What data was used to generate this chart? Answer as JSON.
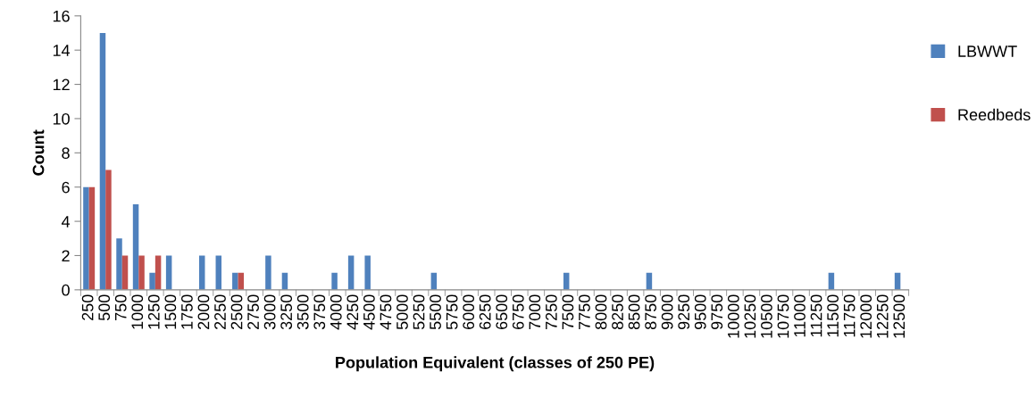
{
  "chart_data": {
    "type": "bar",
    "xlabel": "Population Equivalent (classes of 250 PE)",
    "ylabel": "Count",
    "categories": [
      "250",
      "500",
      "750",
      "1000",
      "1250",
      "1500",
      "1750",
      "2000",
      "2250",
      "2500",
      "2750",
      "3000",
      "3250",
      "3500",
      "3750",
      "4000",
      "4250",
      "4500",
      "4750",
      "5000",
      "5250",
      "5500",
      "5750",
      "6000",
      "6250",
      "6500",
      "6750",
      "7000",
      "7250",
      "7500",
      "7750",
      "8000",
      "8250",
      "8500",
      "8750",
      "9000",
      "9250",
      "9500",
      "9750",
      "10000",
      "10250",
      "10500",
      "10750",
      "11000",
      "11250",
      "11500",
      "11750",
      "12000",
      "12250",
      "12500"
    ],
    "series": [
      {
        "name": "LBWWT",
        "color": "#4f81bd",
        "values": [
          6,
          15,
          3,
          5,
          1,
          2,
          0,
          2,
          2,
          1,
          0,
          2,
          1,
          0,
          0,
          1,
          2,
          2,
          0,
          0,
          0,
          1,
          0,
          0,
          0,
          0,
          0,
          0,
          0,
          1,
          0,
          0,
          0,
          0,
          1,
          0,
          0,
          0,
          0,
          0,
          0,
          0,
          0,
          0,
          0,
          1,
          0,
          0,
          0,
          1
        ]
      },
      {
        "name": "Reedbeds",
        "color": "#c0504d",
        "values": [
          6,
          7,
          2,
          2,
          2,
          0,
          0,
          0,
          0,
          1,
          0,
          0,
          0,
          0,
          0,
          0,
          0,
          0,
          0,
          0,
          0,
          0,
          0,
          0,
          0,
          0,
          0,
          0,
          0,
          0,
          0,
          0,
          0,
          0,
          0,
          0,
          0,
          0,
          0,
          0,
          0,
          0,
          0,
          0,
          0,
          0,
          0,
          0,
          0,
          0
        ]
      }
    ],
    "ylim": [
      0,
      16
    ],
    "yticks": [
      0,
      2,
      4,
      6,
      8,
      10,
      12,
      14,
      16
    ],
    "grid": false,
    "legend": "right"
  }
}
